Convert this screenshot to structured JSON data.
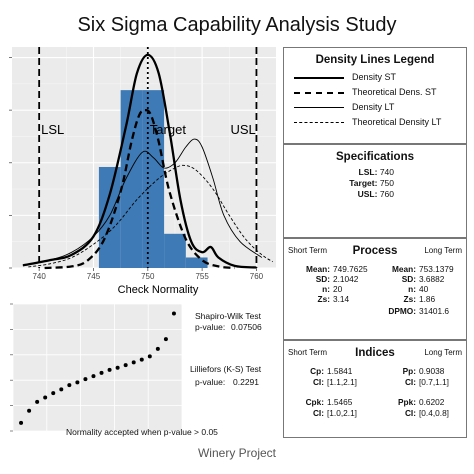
{
  "title": "Six Sigma Capability Analysis Study",
  "footer": "Winery Project",
  "chart_data": [
    {
      "type": "histogram",
      "xlabel": "Check Normality",
      "xlim": [
        737.5,
        761.8
      ],
      "x_ticks": [
        740,
        745,
        750,
        755,
        760
      ],
      "ylim": [
        0,
        0.42
      ],
      "grid": true,
      "bins": [
        {
          "from": 745.5,
          "to": 747.5,
          "density": 0.192
        },
        {
          "from": 747.5,
          "to": 749.5,
          "density": 0.338
        },
        {
          "from": 749.5,
          "to": 751.5,
          "density": 0.338
        },
        {
          "from": 751.5,
          "to": 753.5,
          "density": 0.065
        },
        {
          "from": 753.5,
          "to": 755.5,
          "density": 0.02
        }
      ],
      "bar_color": "#3e7ab5",
      "spec_lines": [
        {
          "label": "LSL",
          "x": 740
        },
        {
          "label": "Target",
          "x": 750
        },
        {
          "label": "USL",
          "x": 760
        }
      ],
      "series": [
        {
          "name": "Density ST",
          "style": "solid-thick",
          "points": [
            [
              738.5,
              0.005
            ],
            [
              741,
              0.015
            ],
            [
              743,
              0.025
            ],
            [
              745,
              0.06
            ],
            [
              746.5,
              0.14
            ],
            [
              748,
              0.27
            ],
            [
              749,
              0.37
            ],
            [
              750,
              0.405
            ],
            [
              751,
              0.37
            ],
            [
              752,
              0.26
            ],
            [
              753,
              0.13
            ],
            [
              754,
              0.05
            ],
            [
              755,
              0.03
            ],
            [
              755.8,
              0.04
            ],
            [
              756.5,
              0.02
            ],
            [
              758,
              0.004
            ],
            [
              760,
              0.001
            ]
          ]
        },
        {
          "name": "Theoretical Dens. ST",
          "style": "dashed-thick",
          "points": [
            [
              740.5,
              0
            ],
            [
              743,
              0.003
            ],
            [
              744.5,
              0.015
            ],
            [
              746,
              0.055
            ],
            [
              747.5,
              0.145
            ],
            [
              748.5,
              0.24
            ],
            [
              749.2,
              0.29
            ],
            [
              749.76,
              0.3
            ],
            [
              750.3,
              0.29
            ],
            [
              751,
              0.24
            ],
            [
              752,
              0.145
            ],
            [
              753.5,
              0.055
            ],
            [
              755,
              0.015
            ],
            [
              756.5,
              0.003
            ],
            [
              758,
              0
            ]
          ]
        },
        {
          "name": "Density LT",
          "style": "solid-thin",
          "points": [
            [
              738.5,
              0.005
            ],
            [
              741,
              0.015
            ],
            [
              743,
              0.03
            ],
            [
              745,
              0.06
            ],
            [
              746.5,
              0.1
            ],
            [
              748,
              0.17
            ],
            [
              749.5,
              0.22
            ],
            [
              750.5,
              0.21
            ],
            [
              751.5,
              0.19
            ],
            [
              752.5,
              0.2
            ],
            [
              753.5,
              0.23
            ],
            [
              754.3,
              0.245
            ],
            [
              755,
              0.23
            ],
            [
              756,
              0.17
            ],
            [
              757,
              0.1
            ],
            [
              758.5,
              0.05
            ],
            [
              760.5,
              0.02
            ]
          ]
        },
        {
          "name": "Theoretical Density LT",
          "style": "dashed-thin",
          "points": [
            [
              739,
              0.002
            ],
            [
              741,
              0.008
            ],
            [
              743,
              0.02
            ],
            [
              745,
              0.045
            ],
            [
              747,
              0.08
            ],
            [
              749,
              0.13
            ],
            [
              751,
              0.17
            ],
            [
              752.5,
              0.19
            ],
            [
              753.4,
              0.195
            ],
            [
              754.5,
              0.185
            ],
            [
              756,
              0.15
            ],
            [
              757.5,
              0.1
            ],
            [
              759,
              0.055
            ],
            [
              760.5,
              0.025
            ],
            [
              761.5,
              0.012
            ]
          ]
        }
      ]
    },
    {
      "type": "scatter",
      "note": "Normality accepted when p-value > 0.05",
      "points": [
        [
          0,
          -2.2
        ],
        [
          1,
          -1.75
        ],
        [
          2,
          -1.42
        ],
        [
          3,
          -1.26
        ],
        [
          4,
          -1.1
        ],
        [
          5,
          -0.96
        ],
        [
          6,
          -0.8
        ],
        [
          7,
          -0.7
        ],
        [
          8,
          -0.58
        ],
        [
          9,
          -0.47
        ],
        [
          10,
          -0.35
        ],
        [
          11,
          -0.24
        ],
        [
          12,
          -0.16
        ],
        [
          13,
          -0.06
        ],
        [
          14,
          0.04
        ],
        [
          15,
          0.14
        ],
        [
          16,
          0.26
        ],
        [
          17,
          0.54
        ],
        [
          18,
          0.9
        ],
        [
          19,
          1.85
        ]
      ],
      "xlim": [
        -1,
        20
      ],
      "ylim": [
        -2.5,
        2.2
      ],
      "grid": true
    }
  ],
  "tests": {
    "shapiro_name": "Shapiro-Wilk Test",
    "shapiro_p_label": "p-value:",
    "shapiro_p": "0.07506",
    "lillie_name": "Lilliefors (K-S) Test",
    "lillie_p_label": "p-value:",
    "lillie_p": "0.2291"
  },
  "legend": {
    "title": "Density Lines Legend",
    "items": [
      "Density ST",
      "Theoretical Dens. ST",
      "Density LT",
      "Theoretical Density LT"
    ]
  },
  "specs": {
    "title": "Specifications",
    "rows": [
      {
        "label": "LSL:",
        "value": "740"
      },
      {
        "label": "Target:",
        "value": "750"
      },
      {
        "label": "USL:",
        "value": "760"
      }
    ]
  },
  "process": {
    "title": "Process",
    "short_term": "Short Term",
    "long_term": "Long Term",
    "st": [
      {
        "label": "Mean:",
        "value": "749.7625"
      },
      {
        "label": "SD:",
        "value": "2.1042"
      },
      {
        "label": "n:",
        "value": "20"
      },
      {
        "label": "Zs:",
        "value": "3.14"
      }
    ],
    "lt": [
      {
        "label": "Mean:",
        "value": "753.1379"
      },
      {
        "label": "SD:",
        "value": "3.6882"
      },
      {
        "label": "n:",
        "value": "40"
      },
      {
        "label": "Zs:",
        "value": "1.86"
      },
      {
        "label": "DPMO:",
        "value": "31401.6"
      }
    ]
  },
  "indices": {
    "title": "Indices",
    "short_term": "Short Term",
    "long_term": "Long Term",
    "cp_label": "Cp:",
    "cp": "1.5841",
    "cp_ci_label": "CI:",
    "cp_ci": "[1.1,2.1]",
    "cpk_label": "Cpk:",
    "cpk": "1.5465",
    "cpk_ci_label": "CI:",
    "cpk_ci": "[1.0,2.1]",
    "pp_label": "Pp:",
    "pp": "0.9038",
    "pp_ci_label": "CI:",
    "pp_ci": "[0.7,1.1]",
    "ppk_label": "Ppk:",
    "ppk": "0.6202",
    "ppk_ci_label": "CI:",
    "ppk_ci": "[0.4,0.8]"
  }
}
